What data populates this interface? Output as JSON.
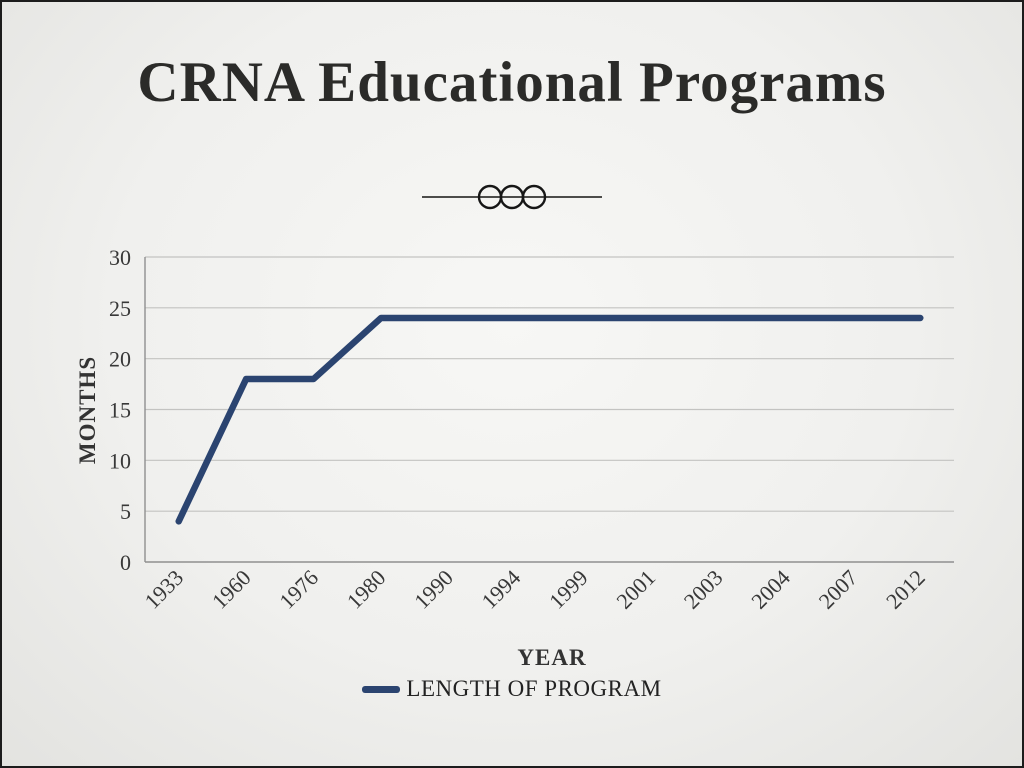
{
  "slide": {
    "title": "CRNA Educational Programs"
  },
  "chart_data": {
    "type": "line",
    "title": "",
    "categories": [
      "1933",
      "1960",
      "1976",
      "1980",
      "1990",
      "1994",
      "1999",
      "2001",
      "2003",
      "2004",
      "2007",
      "2012"
    ],
    "series": [
      {
        "name": "LENGTH OF PROGRAM",
        "values": [
          4,
          18,
          18,
          24,
          24,
          24,
          24,
          24,
          24,
          24,
          24,
          24
        ]
      }
    ],
    "xlabel": "YEAR",
    "ylabel": "MONTHS",
    "ylim": [
      0,
      30
    ],
    "ytick_step": 5,
    "grid": true,
    "legend_position": "bottom",
    "line_color": "#2b4470",
    "grid_color": "#c3c3c1",
    "axis_color": "#8f8f8f",
    "tick_text_color": "#383838"
  }
}
